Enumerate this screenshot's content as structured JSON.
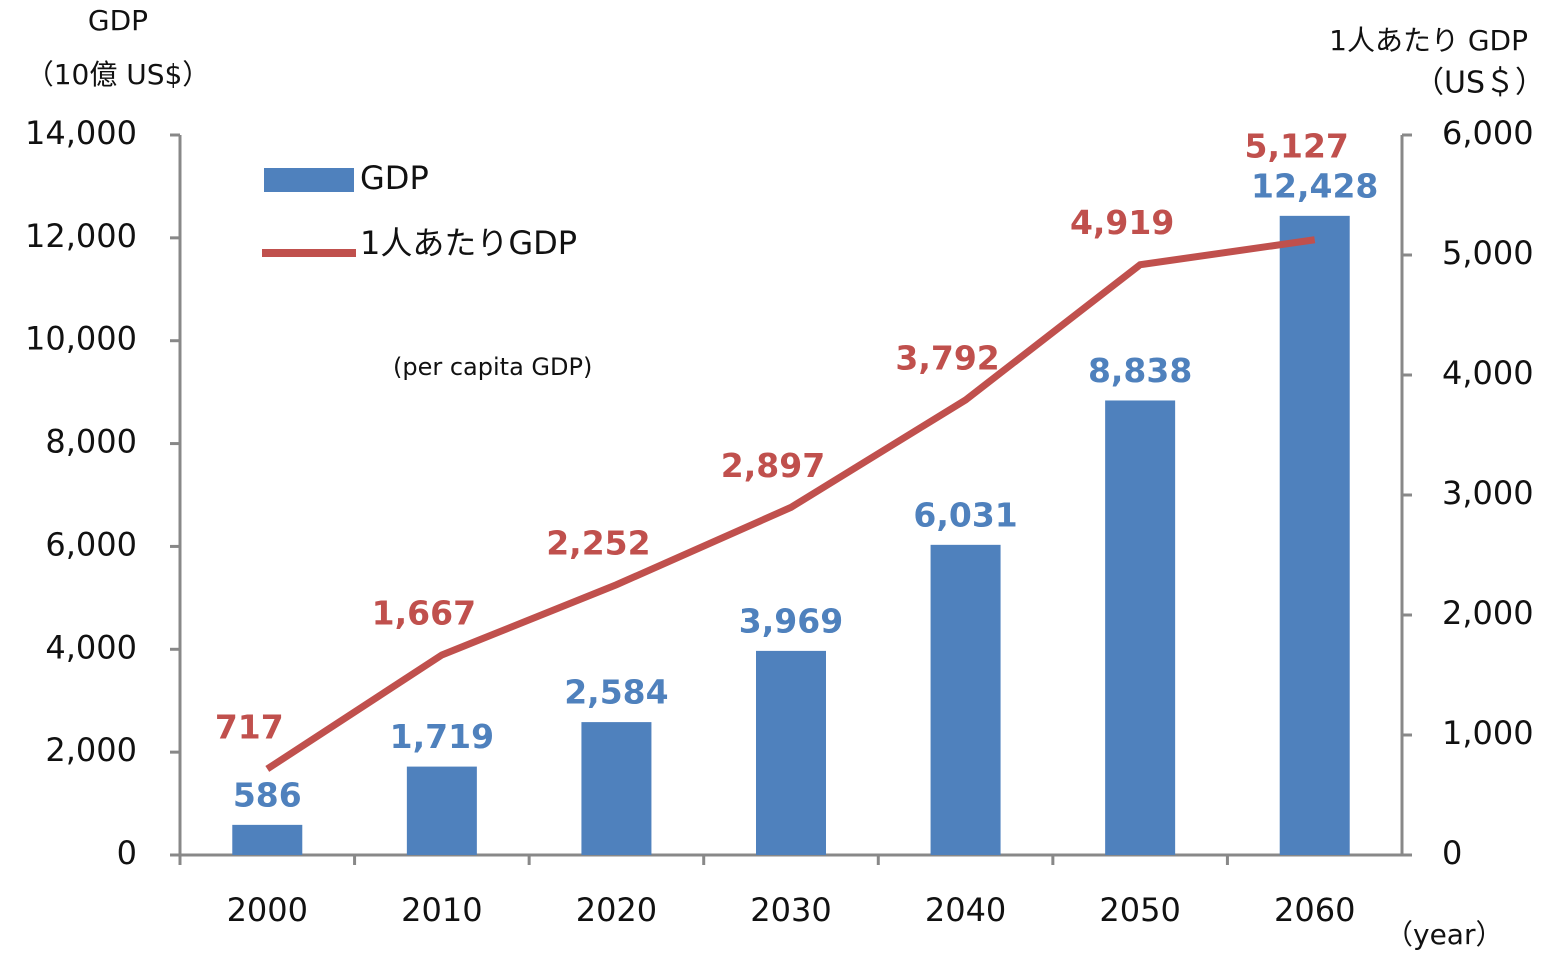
{
  "chart_data": {
    "type": "bar",
    "ylabel": "GDP",
    "ylabel_unit": "（10億 US$）",
    "y2label": "1人あたり GDP",
    "y2label_unit": "（US＄）",
    "xlabel": "（year）",
    "annotation": "(per capita GDP)",
    "categories": [
      "2000",
      "2010",
      "2020",
      "2030",
      "2040",
      "2050",
      "2060"
    ],
    "series": [
      {
        "name": "GDP",
        "color": "#4f81bd",
        "values": [
          586,
          1719,
          2584,
          3969,
          6031,
          8838,
          12428
        ],
        "value_labels": [
          "586",
          "1,719",
          "2,584",
          "3,969",
          "6,031",
          "8,838",
          "12,428"
        ]
      },
      {
        "name": "1人あたりGDP",
        "color": "#c0504d",
        "type": "line",
        "axis": "y2",
        "values": [
          717,
          1667,
          2252,
          2897,
          3792,
          4919,
          5127
        ],
        "value_labels": [
          "717",
          "1,667",
          "2,252",
          "2,897",
          "3,792",
          "4,919",
          "5,127"
        ]
      }
    ],
    "ylim": [
      0,
      14000
    ],
    "yticks": [
      0,
      {
        "value": 2000,
        "label": "2,000"
      },
      {
        "value": 4000,
        "label": "4,000"
      },
      {
        "value": 6000,
        "label": "6,000"
      },
      {
        "value": 8000,
        "label": "8,000"
      },
      {
        "value": 10000,
        "label": "10,000"
      },
      {
        "value": 12000,
        "label": "12,000"
      },
      {
        "value": 14000,
        "label": "14,000"
      }
    ],
    "y2lim": [
      0,
      6000
    ],
    "y2ticks": [
      0,
      {
        "value": 1000,
        "label": "1,000"
      },
      {
        "value": 2000,
        "label": "2,000"
      },
      {
        "value": 3000,
        "label": "3,000"
      },
      {
        "value": 4000,
        "label": "4,000"
      },
      {
        "value": 5000,
        "label": "5,000"
      },
      {
        "value": 6000,
        "label": "6,000"
      }
    ],
    "grid": false,
    "legend": "upper left"
  }
}
